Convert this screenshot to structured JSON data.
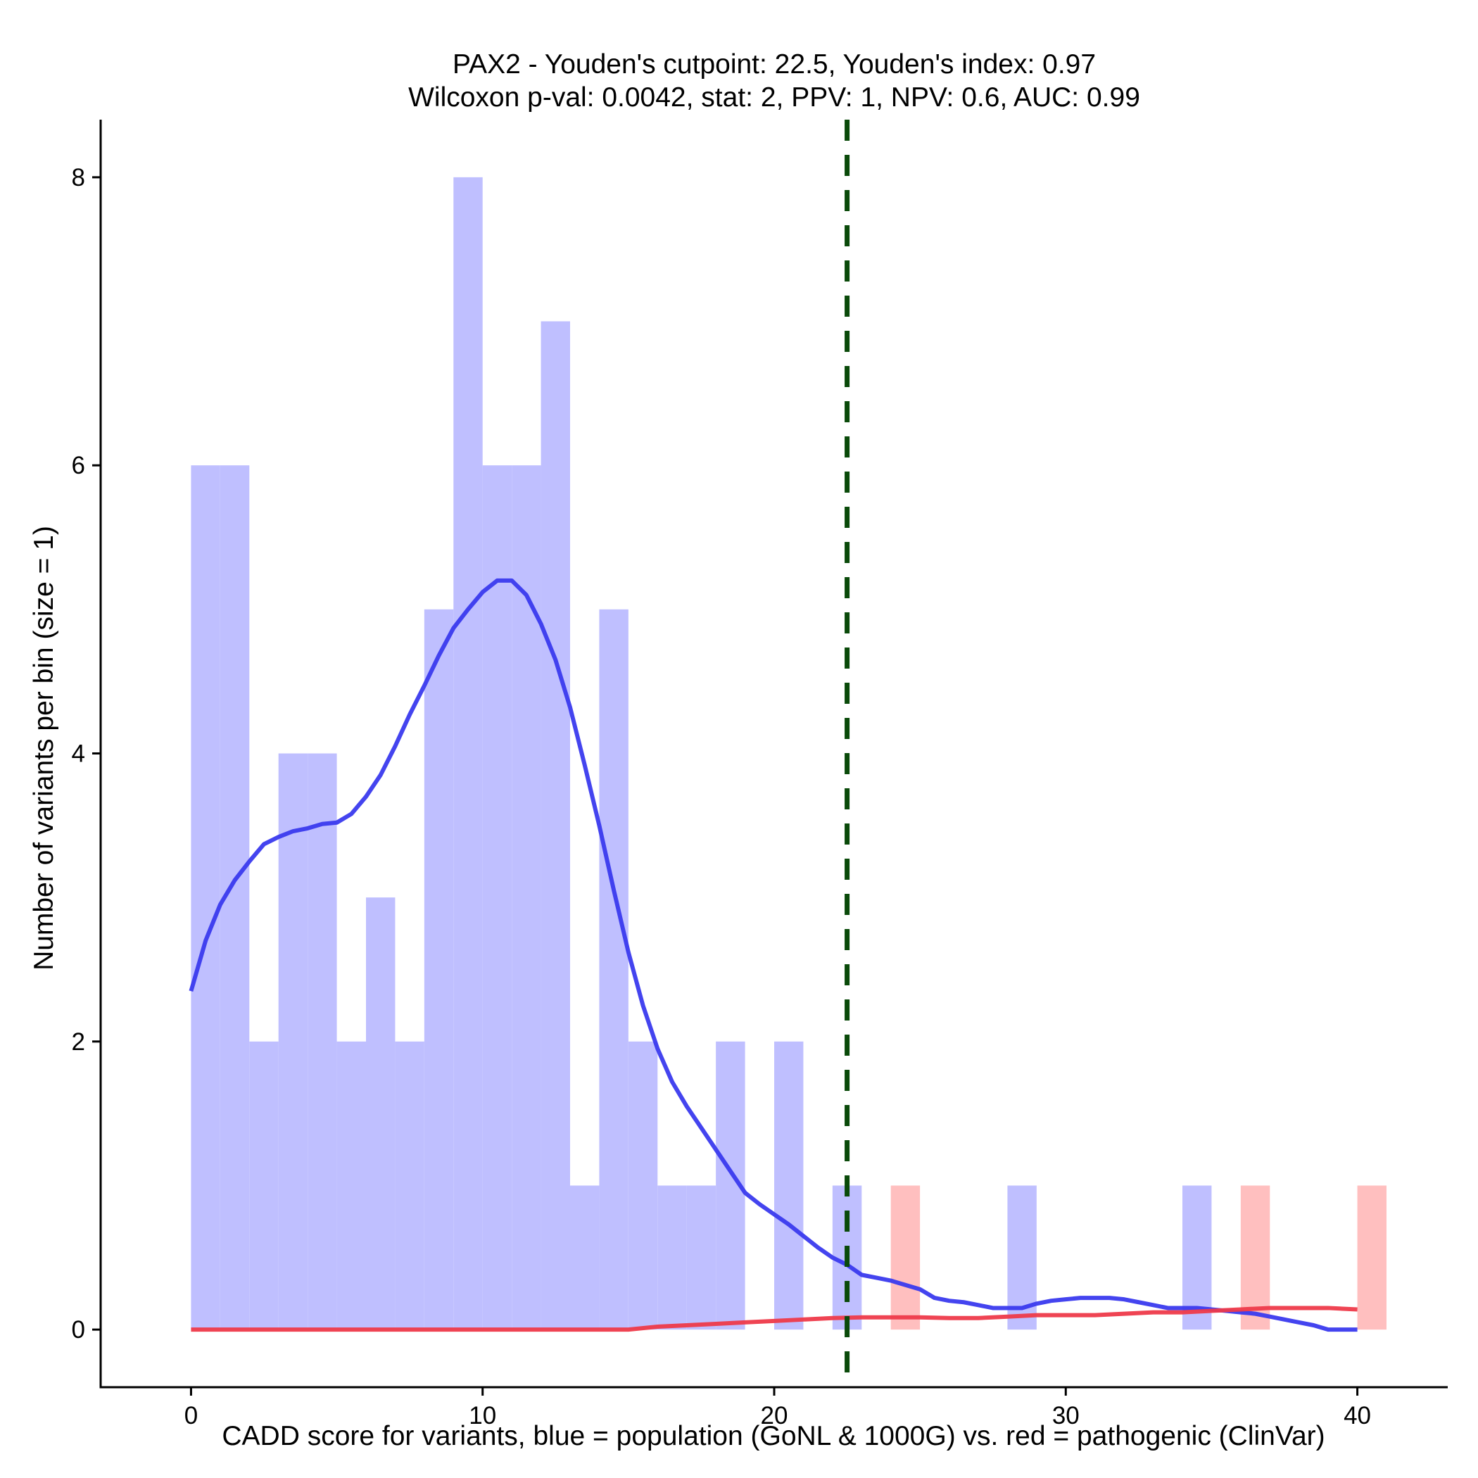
{
  "chart_data": {
    "type": "bar",
    "title": "PAX2 - Youden's cutpoint: 22.5, Youden's index: 0.97",
    "subtitle": "Wilcoxon p-val: 0.0042, stat: 2, PPV: 1, NPV: 0.6, AUC: 0.99",
    "xlabel": "CADD score for variants, blue = population (GoNL & 1000G) vs. red = pathogenic (ClinVar)",
    "ylabel": "Number of variants per bin (size = 1)",
    "xlim": [
      -3.1,
      43.1
    ],
    "ylim": [
      -0.4,
      8.4
    ],
    "xticks": [
      0,
      10,
      20,
      30,
      40
    ],
    "yticks": [
      0,
      2,
      4,
      6,
      8
    ],
    "cutpoint": 22.5,
    "colors": {
      "population_bar": "#bfbfff",
      "pathogenic_bar": "#ffbfbf",
      "population_density": "#3a3aee",
      "pathogenic_density": "#ee3a4a",
      "cutpoint_line": "#0a4a0a"
    },
    "series": [
      {
        "name": "population (GoNL & 1000G)",
        "bins": [
          {
            "x0": 0,
            "x1": 1,
            "count": 6
          },
          {
            "x0": 1,
            "x1": 2,
            "count": 6
          },
          {
            "x0": 2,
            "x1": 3,
            "count": 2
          },
          {
            "x0": 3,
            "x1": 4,
            "count": 4
          },
          {
            "x0": 4,
            "x1": 5,
            "count": 4
          },
          {
            "x0": 5,
            "x1": 6,
            "count": 2
          },
          {
            "x0": 6,
            "x1": 7,
            "count": 3
          },
          {
            "x0": 7,
            "x1": 8,
            "count": 2
          },
          {
            "x0": 8,
            "x1": 9,
            "count": 5
          },
          {
            "x0": 9,
            "x1": 10,
            "count": 8
          },
          {
            "x0": 10,
            "x1": 11,
            "count": 6
          },
          {
            "x0": 11,
            "x1": 12,
            "count": 6
          },
          {
            "x0": 12,
            "x1": 13,
            "count": 7
          },
          {
            "x0": 13,
            "x1": 14,
            "count": 1
          },
          {
            "x0": 14,
            "x1": 15,
            "count": 5
          },
          {
            "x0": 15,
            "x1": 16,
            "count": 2
          },
          {
            "x0": 16,
            "x1": 17,
            "count": 1
          },
          {
            "x0": 17,
            "x1": 18,
            "count": 1
          },
          {
            "x0": 18,
            "x1": 19,
            "count": 2
          },
          {
            "x0": 20,
            "x1": 21,
            "count": 2
          },
          {
            "x0": 22,
            "x1": 23,
            "count": 1
          },
          {
            "x0": 28,
            "x1": 29,
            "count": 1
          },
          {
            "x0": 34,
            "x1": 35,
            "count": 1
          }
        ],
        "density": [
          [
            0,
            2.35
          ],
          [
            0.5,
            2.7
          ],
          [
            1,
            2.95
          ],
          [
            1.5,
            3.12
          ],
          [
            2,
            3.25
          ],
          [
            2.5,
            3.37
          ],
          [
            3,
            3.42
          ],
          [
            3.5,
            3.46
          ],
          [
            4,
            3.48
          ],
          [
            4.5,
            3.51
          ],
          [
            5,
            3.52
          ],
          [
            5.5,
            3.58
          ],
          [
            6,
            3.7
          ],
          [
            6.5,
            3.85
          ],
          [
            7,
            4.05
          ],
          [
            7.5,
            4.27
          ],
          [
            8,
            4.47
          ],
          [
            8.5,
            4.68
          ],
          [
            9,
            4.87
          ],
          [
            9.5,
            5.0
          ],
          [
            10,
            5.12
          ],
          [
            10.5,
            5.2
          ],
          [
            11,
            5.2
          ],
          [
            11.5,
            5.1
          ],
          [
            12,
            4.9
          ],
          [
            12.5,
            4.65
          ],
          [
            13,
            4.32
          ],
          [
            13.5,
            3.92
          ],
          [
            14,
            3.5
          ],
          [
            14.5,
            3.05
          ],
          [
            15,
            2.62
          ],
          [
            15.5,
            2.25
          ],
          [
            16,
            1.95
          ],
          [
            16.5,
            1.72
          ],
          [
            17,
            1.55
          ],
          [
            17.5,
            1.4
          ],
          [
            18,
            1.25
          ],
          [
            18.5,
            1.1
          ],
          [
            19,
            0.95
          ],
          [
            19.5,
            0.87
          ],
          [
            20,
            0.8
          ],
          [
            20.5,
            0.73
          ],
          [
            21,
            0.65
          ],
          [
            21.5,
            0.57
          ],
          [
            22,
            0.5
          ],
          [
            22.5,
            0.45
          ],
          [
            23,
            0.38
          ],
          [
            23.5,
            0.36
          ],
          [
            24,
            0.34
          ],
          [
            24.5,
            0.31
          ],
          [
            25,
            0.28
          ],
          [
            25.5,
            0.22
          ],
          [
            26,
            0.2
          ],
          [
            26.5,
            0.19
          ],
          [
            27,
            0.17
          ],
          [
            27.5,
            0.15
          ],
          [
            28,
            0.15
          ],
          [
            28.5,
            0.15
          ],
          [
            29,
            0.18
          ],
          [
            29.5,
            0.2
          ],
          [
            30,
            0.21
          ],
          [
            30.5,
            0.22
          ],
          [
            31,
            0.22
          ],
          [
            31.5,
            0.22
          ],
          [
            32,
            0.21
          ],
          [
            32.5,
            0.19
          ],
          [
            33,
            0.17
          ],
          [
            33.5,
            0.15
          ],
          [
            34,
            0.15
          ],
          [
            34.5,
            0.15
          ],
          [
            35,
            0.14
          ],
          [
            35.5,
            0.13
          ],
          [
            36,
            0.12
          ],
          [
            36.5,
            0.11
          ],
          [
            37,
            0.09
          ],
          [
            37.5,
            0.07
          ],
          [
            38,
            0.05
          ],
          [
            38.5,
            0.03
          ],
          [
            39,
            0.0
          ],
          [
            40,
            0.0
          ]
        ]
      },
      {
        "name": "pathogenic (ClinVar)",
        "bins": [
          {
            "x0": 24,
            "x1": 25,
            "count": 1
          },
          {
            "x0": 36,
            "x1": 37,
            "count": 1
          },
          {
            "x0": 40,
            "x1": 41,
            "count": 1
          }
        ],
        "density": [
          [
            0,
            0.0
          ],
          [
            15,
            0.0
          ],
          [
            16,
            0.02
          ],
          [
            17,
            0.03
          ],
          [
            18,
            0.04
          ],
          [
            19,
            0.05
          ],
          [
            20,
            0.06
          ],
          [
            21,
            0.07
          ],
          [
            22,
            0.08
          ],
          [
            23,
            0.085
          ],
          [
            24,
            0.085
          ],
          [
            25,
            0.085
          ],
          [
            26,
            0.08
          ],
          [
            27,
            0.08
          ],
          [
            28,
            0.09
          ],
          [
            29,
            0.1
          ],
          [
            30,
            0.1
          ],
          [
            31,
            0.1
          ],
          [
            32,
            0.11
          ],
          [
            33,
            0.12
          ],
          [
            34,
            0.12
          ],
          [
            35,
            0.13
          ],
          [
            36,
            0.14
          ],
          [
            37,
            0.15
          ],
          [
            38,
            0.15
          ],
          [
            39,
            0.15
          ],
          [
            40,
            0.14
          ]
        ]
      }
    ]
  }
}
